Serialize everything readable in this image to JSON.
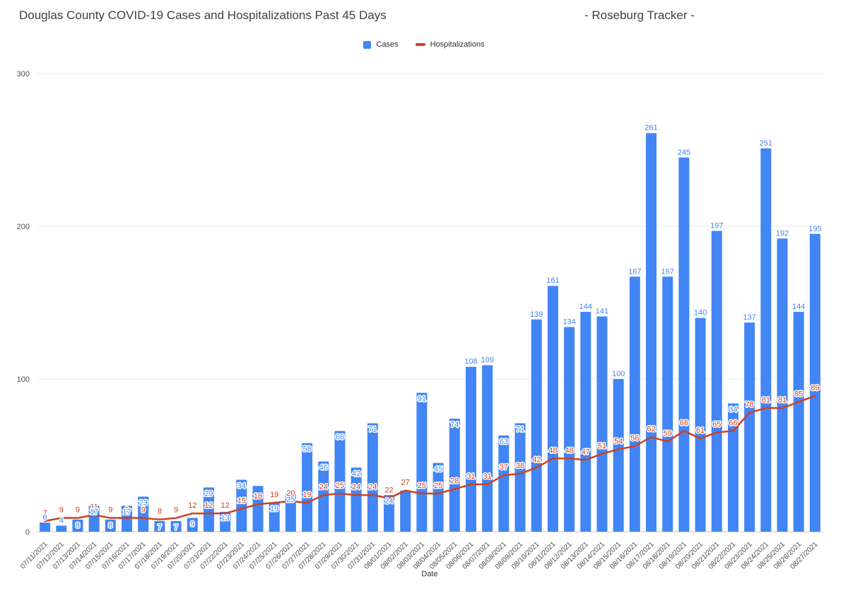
{
  "header": {
    "title": "Douglas County COVID-19 Cases and Hospitalizations Past 45 Days",
    "subtitle": "- Roseburg Tracker -"
  },
  "legend": [
    {
      "label": "Cases",
      "swatch": "square",
      "color": "#4285f4"
    },
    {
      "label": "Hospitalizations",
      "swatch": "line",
      "color": "#cc4125"
    }
  ],
  "chart_data": {
    "type": "bar+line",
    "title": "Douglas County COVID-19 Cases and Hospitalizations Past 45 Days",
    "xlabel": "Date",
    "ylabel": "",
    "ylim": [
      0,
      300
    ],
    "yticks": [
      0,
      100,
      200,
      300
    ],
    "grid": true,
    "legend_position": "top",
    "categories": [
      "07/11/2021",
      "07/12/2021",
      "07/13/2021",
      "07/14/2021",
      "07/15/2021",
      "07/16/2021",
      "07/17/2021",
      "07/18/2021",
      "07/19/2021",
      "07/20/2021",
      "07/21/2021",
      "07/22/2021",
      "07/23/2021",
      "07/24/2021",
      "07/25/2021",
      "07/26/2021",
      "07/27/2021",
      "07/28/2021",
      "07/29/2021",
      "07/30/2021",
      "07/31/2021",
      "08/01/2021",
      "08/02/2021",
      "08/03/2021",
      "08/04/2021",
      "08/05/2021",
      "08/06/2021",
      "08/07/2021",
      "08/08/2021",
      "08/09/2021",
      "08/10/2021",
      "08/11/2021",
      "08/12/2021",
      "08/13/2021",
      "08/14/2021",
      "08/15/2021",
      "08/16/2021",
      "08/17/2021",
      "08/18/2021",
      "08/19/2021",
      "08/20/2021",
      "08/21/2021",
      "08/22/2021",
      "08/23/2021",
      "08/24/2021",
      "08/25/2021",
      "08/26/2021",
      "08/27/2021"
    ],
    "series": [
      {
        "name": "Cases",
        "type": "bar",
        "color": "#4285f4",
        "values": [
          6,
          4,
          8,
          17,
          8,
          17,
          23,
          7,
          7,
          9,
          29,
          13,
          34,
          30,
          19,
          25,
          58,
          46,
          66,
          42,
          71,
          24,
          27,
          91,
          45,
          74,
          108,
          109,
          63,
          71,
          139,
          161,
          134,
          144,
          141,
          100,
          167,
          261,
          167,
          245,
          140,
          197,
          84,
          137,
          251,
          192,
          144,
          195
        ],
        "hidden_label_indices": [
          13,
          22
        ]
      },
      {
        "name": "Hospitalizations",
        "type": "line",
        "color": "#cc4125",
        "values": [
          7,
          9,
          9,
          11,
          9,
          9,
          9,
          8,
          9,
          12,
          12,
          12,
          15,
          18,
          19,
          20,
          19,
          24,
          25,
          24,
          24,
          22,
          27,
          25,
          25,
          28,
          31,
          31,
          37,
          38,
          42,
          48,
          48,
          47,
          51,
          54,
          56,
          62,
          59,
          66,
          61,
          65,
          66,
          78,
          81,
          81,
          85,
          89
        ]
      }
    ]
  }
}
